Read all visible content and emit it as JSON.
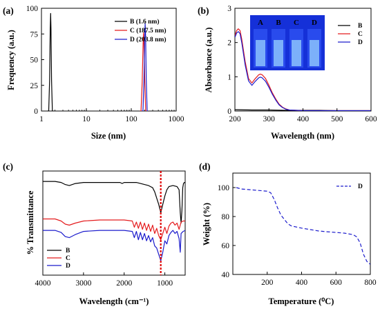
{
  "colors": {
    "B": "#000000",
    "C": "#e41a1c",
    "D": "#1a1acc",
    "inset_bg": "#1530d8",
    "guide": "#e00000"
  },
  "chart_data": [
    {
      "panel": "(a)",
      "type": "line",
      "xscale": "log",
      "xlabel": "Size (nm)",
      "ylabel": "Frequency (a.u.)",
      "xlim": [
        1,
        1000
      ],
      "ylim": [
        0,
        100
      ],
      "xticks": [
        "1",
        "10",
        "100",
        "1000"
      ],
      "yticks": [
        "0",
        "25",
        "50",
        "75",
        "100"
      ],
      "legend": "top-right",
      "series": [
        {
          "name": "B (1.6 nm)",
          "key": "B",
          "x": [
            1.35,
            1.45,
            1.52,
            1.57,
            1.6,
            1.63,
            1.68,
            1.75,
            1.85
          ],
          "y": [
            0,
            0,
            30,
            80,
            95,
            80,
            30,
            0,
            0
          ]
        },
        {
          "name": "C (187.5 nm)",
          "key": "C",
          "x": [
            155,
            165,
            175,
            183,
            187.5,
            192,
            200,
            210,
            220
          ],
          "y": [
            0,
            0,
            28,
            65,
            76,
            65,
            28,
            0,
            0
          ]
        },
        {
          "name": "D (203.8 nm)",
          "key": "D",
          "x": [
            170,
            182,
            192,
            199,
            203.8,
            209,
            216,
            226,
            236
          ],
          "y": [
            0,
            0,
            30,
            72,
            85,
            72,
            30,
            0,
            0
          ]
        }
      ]
    },
    {
      "panel": "(b)",
      "type": "line",
      "xlabel": "Wavelength (nm)",
      "ylabel": "Absorbance (a.u.)",
      "xlim": [
        200,
        600
      ],
      "ylim": [
        0,
        3
      ],
      "xticks": [
        "200",
        "300",
        "400",
        "500",
        "600"
      ],
      "yticks": [
        "0",
        "1",
        "2",
        "3"
      ],
      "legend": "top-right",
      "inset_labels": [
        "A",
        "B",
        "C",
        "D"
      ],
      "series": [
        {
          "name": "B",
          "key": "B",
          "x": [
            200,
            250,
            300,
            350,
            400,
            450,
            500,
            550,
            600
          ],
          "y": [
            0.04,
            0.03,
            0.03,
            0.02,
            0.02,
            0.02,
            0.01,
            0.01,
            0.01
          ]
        },
        {
          "name": "C",
          "key": "C",
          "x": [
            200,
            205,
            210,
            215,
            220,
            230,
            240,
            250,
            260,
            270,
            275,
            280,
            290,
            300,
            310,
            320,
            330,
            340,
            350,
            360,
            380,
            400,
            450,
            500,
            600
          ],
          "y": [
            2.2,
            2.35,
            2.4,
            2.35,
            2.1,
            1.45,
            0.95,
            0.82,
            0.95,
            1.06,
            1.08,
            1.06,
            0.95,
            0.75,
            0.53,
            0.35,
            0.2,
            0.11,
            0.06,
            0.03,
            0.02,
            0.01,
            0.01,
            0.01,
            0.01
          ]
        },
        {
          "name": "D",
          "key": "D",
          "x": [
            200,
            205,
            210,
            215,
            220,
            230,
            240,
            250,
            260,
            270,
            275,
            280,
            290,
            300,
            310,
            320,
            330,
            340,
            350,
            360,
            380,
            400,
            450,
            500,
            600
          ],
          "y": [
            2.15,
            2.28,
            2.32,
            2.26,
            2.0,
            1.35,
            0.88,
            0.75,
            0.87,
            0.97,
            0.99,
            0.97,
            0.87,
            0.69,
            0.49,
            0.32,
            0.18,
            0.1,
            0.05,
            0.03,
            0.02,
            0.01,
            0.01,
            0.01,
            0.01
          ]
        }
      ]
    },
    {
      "panel": "(c)",
      "type": "line",
      "xlabel": "Wavelength (cm⁻¹)",
      "ylabel": "% Transmittance",
      "xlim": [
        4000,
        500
      ],
      "ylim": [
        0,
        100
      ],
      "reverse_x": true,
      "xticks": [
        "4000",
        "3000",
        "2000",
        "1000"
      ],
      "yticks": [],
      "legend": "bottom-left",
      "guide_line_x": 1100,
      "series": [
        {
          "name": "B",
          "key": "B",
          "x": [
            4000,
            3700,
            3550,
            3450,
            3350,
            3200,
            3000,
            2600,
            2100,
            2050,
            2000,
            1700,
            1600,
            1500,
            1400,
            1300,
            1250,
            1200,
            1150,
            1100,
            1050,
            1000,
            950,
            900,
            800,
            700,
            650,
            620,
            600,
            580,
            560,
            540,
            520,
            500
          ],
          "y": [
            90,
            90,
            89,
            87,
            86,
            88,
            89,
            89,
            89,
            88,
            89,
            89,
            88,
            87,
            86,
            84,
            80,
            74,
            68,
            60,
            68,
            76,
            82,
            85,
            86,
            85,
            82,
            60,
            50,
            62,
            84,
            88,
            89,
            89
          ]
        },
        {
          "name": "C",
          "key": "C",
          "x": [
            4000,
            3700,
            3550,
            3450,
            3350,
            3200,
            3000,
            2600,
            2100,
            2000,
            1800,
            1750,
            1700,
            1650,
            1600,
            1550,
            1500,
            1450,
            1400,
            1350,
            1300,
            1250,
            1200,
            1150,
            1100,
            1050,
            1000,
            950,
            900,
            850,
            800,
            750,
            700,
            650,
            600,
            550,
            500
          ],
          "y": [
            54,
            54,
            52,
            49,
            48,
            50,
            52,
            53,
            53,
            53,
            52,
            46,
            51,
            45,
            51,
            44,
            50,
            43,
            49,
            42,
            48,
            40,
            45,
            38,
            34,
            40,
            46,
            40,
            47,
            50,
            51,
            48,
            50,
            44,
            51,
            52,
            52
          ]
        },
        {
          "name": "D",
          "key": "D",
          "x": [
            4000,
            3700,
            3550,
            3450,
            3350,
            3200,
            3000,
            2600,
            2100,
            2000,
            1800,
            1750,
            1700,
            1650,
            1600,
            1550,
            1500,
            1450,
            1400,
            1350,
            1300,
            1250,
            1200,
            1150,
            1100,
            1050,
            1000,
            950,
            900,
            850,
            800,
            750,
            700,
            650,
            620,
            600,
            550,
            500
          ],
          "y": [
            43,
            43,
            41,
            37,
            36,
            39,
            42,
            43,
            43,
            43,
            42,
            36,
            42,
            34,
            41,
            34,
            40,
            33,
            38,
            32,
            36,
            28,
            26,
            20,
            14,
            22,
            33,
            30,
            38,
            41,
            43,
            40,
            42,
            35,
            22,
            40,
            42,
            43
          ]
        }
      ]
    },
    {
      "panel": "(d)",
      "type": "line",
      "xlabel": "Temperature (⁰C)",
      "ylabel": "Weight (%)",
      "xlim": [
        0,
        800
      ],
      "ylim": [
        40,
        110
      ],
      "xticks": [
        "200",
        "400",
        "600",
        "800"
      ],
      "yticks": [
        "40",
        "60",
        "80",
        "100"
      ],
      "legend": "top-right",
      "series": [
        {
          "name": "D",
          "key": "D",
          "dashed": true,
          "x": [
            20,
            50,
            100,
            150,
            200,
            220,
            240,
            260,
            280,
            300,
            320,
            340,
            400,
            450,
            500,
            550,
            600,
            650,
            700,
            720,
            740,
            760,
            780,
            800
          ],
          "y": [
            100,
            99,
            98.5,
            98,
            97.5,
            96.5,
            92,
            86,
            81,
            78,
            75,
            73.5,
            72,
            71,
            70,
            69.5,
            69,
            68.5,
            67.5,
            66,
            62,
            54,
            49,
            47
          ]
        }
      ]
    }
  ]
}
